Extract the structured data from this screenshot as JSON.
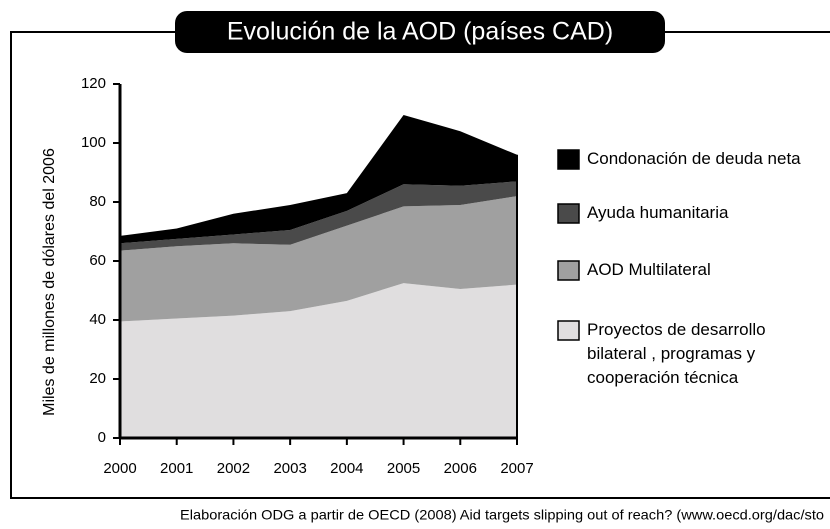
{
  "chart_data": {
    "type": "stacked_area",
    "title": "Evolución de la AOD (países CAD)",
    "ylabel": "Miles de millones de dólares del 2006",
    "source": "Elaboración ODG a partir de OECD (2008) Aid targets slipping out of reach? (www.oecd.org/dac/sto",
    "x": [
      2000,
      2001,
      2002,
      2003,
      2004,
      2005,
      2006,
      2007
    ],
    "xlim": [
      2000,
      2007
    ],
    "xticks": [
      2000,
      2001,
      2002,
      2003,
      2004,
      2005,
      2006,
      2007
    ],
    "ylim": [
      0,
      120
    ],
    "yticks": [
      0,
      20,
      40,
      60,
      80,
      100,
      120
    ],
    "series": [
      {
        "name": "Proyectos de desarrollo bilateral , programas y cooperación técnica",
        "color": "#e0dedf",
        "values": [
          39.5,
          40.5,
          41.5,
          43,
          46.5,
          52.5,
          50.5,
          52
        ]
      },
      {
        "name": "AOD Multilateral",
        "color": "#a0a0a0",
        "values": [
          24,
          24.5,
          24.5,
          22.5,
          25.5,
          26,
          28.5,
          30
        ]
      },
      {
        "name": "Ayuda humanitaria",
        "color": "#4a4a4a",
        "values": [
          2.5,
          2.5,
          3,
          5,
          5,
          7.5,
          6.5,
          5
        ]
      },
      {
        "name": "Condonación de deuda neta",
        "color": "#000000",
        "values": [
          2.5,
          3.5,
          7,
          8.5,
          6,
          23.5,
          18.5,
          9
        ]
      }
    ]
  }
}
